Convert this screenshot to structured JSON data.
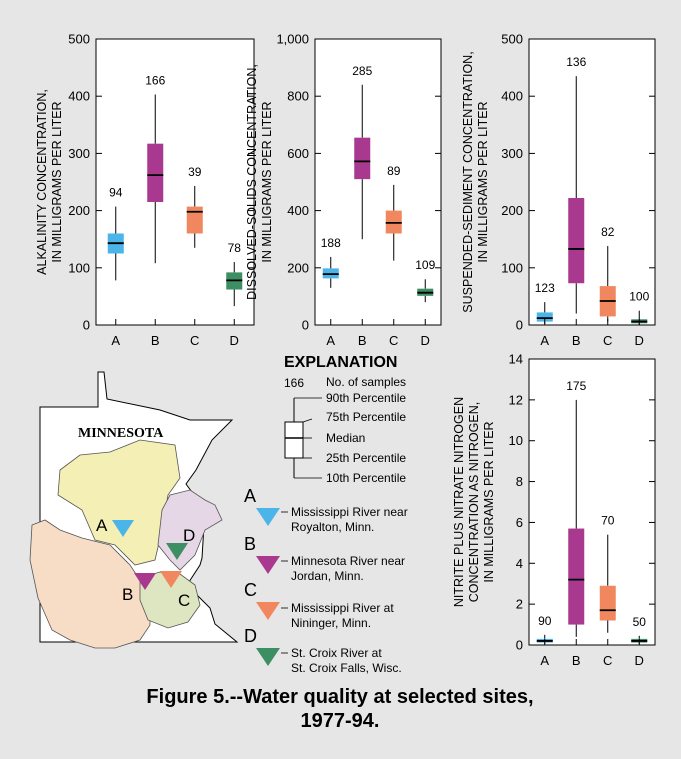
{
  "figure": {
    "caption_line1": "Figure 5.--Water quality at selected sites,",
    "caption_line2": "1977-94."
  },
  "colors": {
    "A": "#4bb4e8",
    "B": "#a8398e",
    "C": "#f0875f",
    "D": "#3e8e63"
  },
  "chart_data": [
    {
      "type": "boxplot",
      "ylabel_line1": "ALKALINITY CONCENTRATION,",
      "ylabel_line2": "IN MILLIGRAMS PER LITER",
      "ylim": [
        0,
        500
      ],
      "yticks": [
        0,
        100,
        200,
        300,
        400,
        500
      ],
      "ytick_labels": [
        "0",
        "100",
        "200",
        "300",
        "400",
        "500"
      ],
      "categories": [
        "A",
        "B",
        "C",
        "D"
      ],
      "boxes": [
        {
          "site": "A",
          "p10": 78,
          "p25": 125,
          "median": 143,
          "p75": 160,
          "p90": 207,
          "n": "94"
        },
        {
          "site": "B",
          "p10": 108,
          "p25": 215,
          "median": 262,
          "p75": 317,
          "p90": 403,
          "n": "166"
        },
        {
          "site": "C",
          "p10": 135,
          "p25": 160,
          "median": 198,
          "p75": 207,
          "p90": 243,
          "n": "39"
        },
        {
          "site": "D",
          "p10": 33,
          "p25": 62,
          "median": 78,
          "p75": 92,
          "p90": 110,
          "n": "78"
        }
      ]
    },
    {
      "type": "boxplot",
      "ylabel_line1": "DISSOLVED-SOLIDS CONCENTRATION,",
      "ylabel_line2": "IN MILLIGRAMS PER LITER",
      "ylim": [
        0,
        1000
      ],
      "yticks": [
        0,
        200,
        400,
        600,
        800,
        1000
      ],
      "ytick_labels": [
        "0",
        "200",
        "400",
        "600",
        "800",
        "1,000"
      ],
      "categories": [
        "A",
        "B",
        "C",
        "D"
      ],
      "boxes": [
        {
          "site": "A",
          "p10": 130,
          "p25": 163,
          "median": 178,
          "p75": 198,
          "p90": 238,
          "n": "188"
        },
        {
          "site": "B",
          "p10": 300,
          "p25": 510,
          "median": 572,
          "p75": 655,
          "p90": 840,
          "n": "285"
        },
        {
          "site": "C",
          "p10": 225,
          "p25": 320,
          "median": 357,
          "p75": 400,
          "p90": 490,
          "n": "89"
        },
        {
          "site": "D",
          "p10": 80,
          "p25": 102,
          "median": 113,
          "p75": 127,
          "p90": 160,
          "n": "109"
        }
      ]
    },
    {
      "type": "boxplot",
      "ylabel_line1": "SUSPENDED-SEDIMENT CONCENTRATION,",
      "ylabel_line2": "IN MILLIGRAMS PER LITER",
      "ylim": [
        0,
        500
      ],
      "yticks": [
        0,
        100,
        200,
        300,
        400,
        500
      ],
      "ytick_labels": [
        "0",
        "100",
        "200",
        "300",
        "400",
        "500"
      ],
      "categories": [
        "A",
        "B",
        "C",
        "D"
      ],
      "boxes": [
        {
          "site": "A",
          "p10": 2,
          "p25": 6,
          "median": 12,
          "p75": 22,
          "p90": 40,
          "n": "123"
        },
        {
          "site": "B",
          "p10": 20,
          "p25": 73,
          "median": 133,
          "p75": 222,
          "p90": 435,
          "n": "136"
        },
        {
          "site": "C",
          "p10": 6,
          "p25": 15,
          "median": 42,
          "p75": 68,
          "p90": 138,
          "n": "82"
        },
        {
          "site": "D",
          "p10": 1,
          "p25": 3,
          "median": 6,
          "p75": 10,
          "p90": 25,
          "n": "100"
        }
      ]
    },
    {
      "type": "boxplot",
      "ylabel_line1": "NITRITE PLUS NITRATE NITROGEN",
      "ylabel_line2": "CONCENTRATION AS NITROGEN,",
      "ylabel_line3": "IN MILLIGRAMS PER LITER",
      "ylim": [
        0,
        14
      ],
      "yticks": [
        0,
        2,
        4,
        6,
        8,
        10,
        12,
        14
      ],
      "ytick_labels": [
        "0",
        "2",
        "4",
        "6",
        "8",
        "10",
        "12",
        "14"
      ],
      "categories": [
        "A",
        "B",
        "C",
        "D"
      ],
      "boxes": [
        {
          "site": "A",
          "p10": 0.05,
          "p25": 0.12,
          "median": 0.2,
          "p75": 0.3,
          "p90": 0.5,
          "n": "90"
        },
        {
          "site": "B",
          "p10": 0.4,
          "p25": 1.0,
          "median": 3.2,
          "p75": 5.7,
          "p90": 12.0,
          "n": "175"
        },
        {
          "site": "C",
          "p10": 0.6,
          "p25": 1.2,
          "median": 1.7,
          "p75": 2.9,
          "p90": 5.4,
          "n": "70"
        },
        {
          "site": "D",
          "p10": 0.05,
          "p25": 0.12,
          "median": 0.2,
          "p75": 0.3,
          "p90": 0.45,
          "n": "50"
        }
      ]
    }
  ],
  "explanation": {
    "title": "EXPLANATION",
    "n_value": "166",
    "labels": [
      "No. of samples",
      "90th  Percentile",
      "75th Percentile",
      "Median",
      "25th Percentile",
      "10th Percentile"
    ]
  },
  "map": {
    "state_label": "MINNESOTA",
    "site_letters": [
      "A",
      "B",
      "C",
      "D"
    ]
  },
  "sites": [
    {
      "letter": "A",
      "line1": "Mississippi River near",
      "line2": "Royalton, Minn."
    },
    {
      "letter": "B",
      "line1": "Minnesota River near",
      "line2": "Jordan, Minn."
    },
    {
      "letter": "C",
      "line1": "Mississippi River at",
      "line2": "Nininger, Minn."
    },
    {
      "letter": "D",
      "line1": "St. Croix River at",
      "line2": "St. Croix Falls, Wisc."
    }
  ]
}
